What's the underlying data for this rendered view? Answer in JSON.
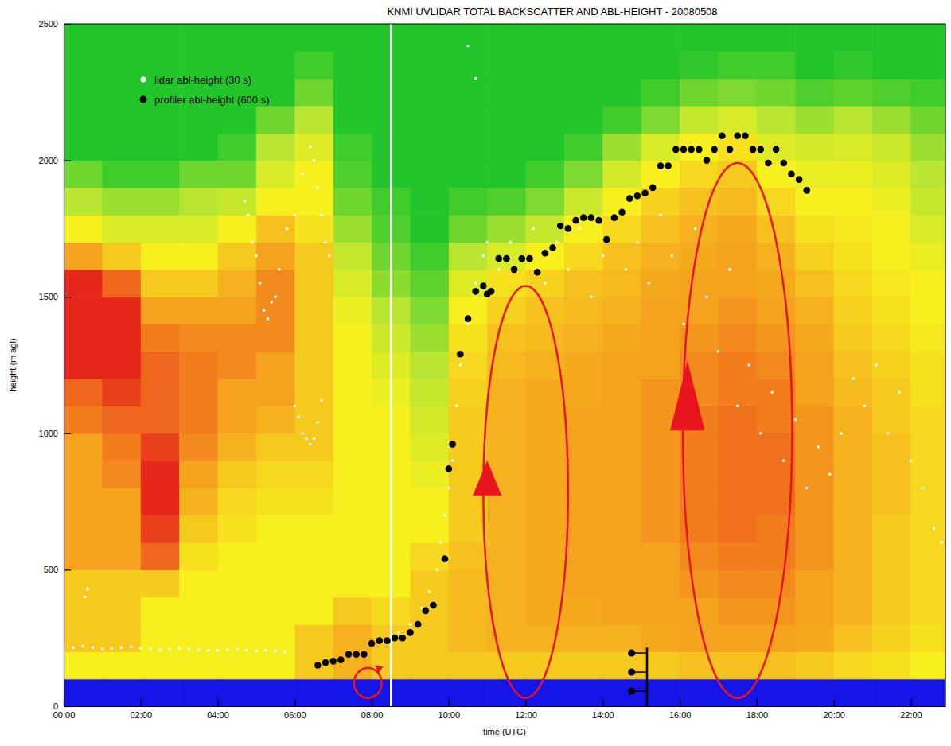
{
  "chart_data": {
    "type": "heatmap",
    "title": "KNMI UVLIDAR TOTAL BACKSCATTER AND ABL-HEIGHT - 20080508",
    "xlabel": "time (UTC)",
    "ylabel": "height (m agl)",
    "xlim": [
      0,
      22.9
    ],
    "ylim": [
      0,
      2500
    ],
    "xticks": [
      {
        "value": 0,
        "label": "00:00"
      },
      {
        "value": 2,
        "label": "02:00"
      },
      {
        "value": 4,
        "label": "04:00"
      },
      {
        "value": 6,
        "label": "06:00"
      },
      {
        "value": 8,
        "label": "08:00"
      },
      {
        "value": 10,
        "label": "10:00"
      },
      {
        "value": 12,
        "label": "12:00"
      },
      {
        "value": 14,
        "label": "14:00"
      },
      {
        "value": 16,
        "label": "16:00"
      },
      {
        "value": 18,
        "label": "18:00"
      },
      {
        "value": 20,
        "label": "20:00"
      },
      {
        "value": 22,
        "label": "22:00"
      }
    ],
    "yticks": [
      0,
      500,
      1000,
      1500,
      2000,
      2500
    ],
    "legend": "top-left",
    "x_edges": [
      0,
      1,
      2,
      3,
      4,
      5,
      6,
      7,
      8,
      9,
      10,
      11,
      12,
      13,
      14,
      15,
      16,
      17,
      18,
      19,
      20,
      21,
      22,
      23
    ],
    "y_edges": [
      0,
      100,
      200,
      300,
      400,
      500,
      600,
      700,
      800,
      900,
      1000,
      1100,
      1200,
      1300,
      1400,
      1500,
      1600,
      1700,
      1800,
      1900,
      2000,
      2100,
      2200,
      2300,
      2400,
      2500
    ],
    "zlim": [
      0,
      5
    ],
    "z": [
      [
        0,
        3,
        3.5,
        3.5,
        3.5,
        4,
        4,
        4,
        4,
        4,
        4.3,
        4.5,
        5,
        5,
        5,
        5,
        4,
        3,
        2,
        1.5,
        1,
        1,
        1,
        1,
        1
      ],
      [
        0,
        3,
        3.5,
        3.5,
        3.5,
        4,
        4,
        4,
        4.2,
        4.3,
        4.5,
        4.8,
        5,
        5,
        5,
        4.5,
        3.5,
        2.5,
        1.8,
        1.2,
        1,
        1,
        1,
        1,
        1
      ],
      [
        0,
        3,
        3,
        3,
        3.5,
        4.5,
        4.8,
        5,
        5,
        4.8,
        4.5,
        4.5,
        4.5,
        4.3,
        4,
        3.5,
        3,
        2.5,
        1.8,
        1.2,
        1,
        1,
        1,
        1,
        1
      ],
      [
        0,
        3,
        3,
        3,
        3,
        3.2,
        3.5,
        3.8,
        4,
        4.2,
        4.3,
        4.3,
        4.3,
        4.2,
        4,
        3.5,
        3,
        2.5,
        2,
        1.5,
        1,
        1,
        1,
        1,
        1
      ],
      [
        0,
        3,
        3,
        3,
        3,
        3,
        3.2,
        3.3,
        3.5,
        3.8,
        4,
        4,
        4.2,
        4.2,
        4,
        3.8,
        3.5,
        3,
        2.2,
        1.5,
        1.2,
        1,
        1,
        1,
        1
      ],
      [
        0,
        3,
        3,
        3,
        3,
        3,
        3,
        3.2,
        3.3,
        3.5,
        3.8,
        4,
        4,
        4.2,
        4.2,
        4.2,
        4,
        3.6,
        3,
        2.5,
        2,
        1.5,
        1,
        1,
        1
      ],
      [
        0,
        3.5,
        3.5,
        3,
        3,
        3,
        3,
        3.2,
        3.3,
        3.5,
        3.5,
        3.5,
        3.5,
        3.5,
        3.5,
        3.5,
        3.5,
        3.2,
        3,
        3,
        2.6,
        2,
        1.5,
        1.2,
        1
      ],
      [
        0,
        3.8,
        3.8,
        3.5,
        3,
        3,
        3,
        3,
        3,
        3,
        3,
        3,
        3,
        3,
        2.8,
        2.5,
        2.2,
        1.8,
        1.5,
        1.3,
        1.2,
        1,
        1,
        1,
        1
      ],
      [
        0,
        3.5,
        3.5,
        3.3,
        3,
        3,
        3,
        3,
        3,
        3,
        3,
        2.8,
        2.6,
        2.3,
        2,
        1.7,
        1.5,
        1.3,
        1.2,
        1,
        1,
        1,
        1,
        1,
        1
      ],
      [
        0,
        3.5,
        3.5,
        3.5,
        3.5,
        3.3,
        3,
        3,
        2.8,
        2.6,
        2.4,
        2.2,
        2,
        1.8,
        1.6,
        1.4,
        1.2,
        1,
        1,
        1,
        1,
        1,
        1,
        1,
        1
      ],
      [
        0,
        3.5,
        3.7,
        3.7,
        3.7,
        3.6,
        3.5,
        3.5,
        3.5,
        3.5,
        3.5,
        3.4,
        3.3,
        3.2,
        3,
        2.6,
        2,
        1.5,
        1.2,
        1,
        1,
        1,
        1,
        1,
        1
      ],
      [
        0,
        3.5,
        3.8,
        3.8,
        3.8,
        3.8,
        3.8,
        3.8,
        3.8,
        3.8,
        3.8,
        3.8,
        3.7,
        3.6,
        3.4,
        3.2,
        2.5,
        1.8,
        1.3,
        1,
        1,
        1,
        1,
        1,
        1
      ],
      [
        0,
        3.5,
        3.8,
        3.9,
        3.9,
        3.9,
        3.9,
        3.9,
        3.9,
        3.9,
        3.9,
        3.9,
        3.8,
        3.7,
        3.6,
        3.4,
        3,
        2.2,
        1.6,
        1.2,
        1,
        1,
        1,
        1,
        1
      ],
      [
        0,
        3.5,
        3.8,
        3.9,
        4,
        4,
        4,
        4,
        4,
        4,
        4,
        3.9,
        3.9,
        3.8,
        3.7,
        3.6,
        3.3,
        3,
        2.3,
        1.6,
        1.2,
        1,
        1,
        1,
        1
      ],
      [
        0,
        3.5,
        3.8,
        4,
        4,
        4,
        4,
        4,
        4,
        4,
        4,
        4,
        4,
        3.9,
        3.8,
        3.7,
        3.6,
        3.3,
        3,
        2.4,
        1.8,
        1.2,
        1,
        1,
        1
      ],
      [
        0,
        3.5,
        3.9,
        4,
        4,
        4,
        4.1,
        4.1,
        4.1,
        4.1,
        4.1,
        4.1,
        4,
        4,
        4,
        3.9,
        3.8,
        3.6,
        3.4,
        3,
        2.5,
        1.6,
        1.2,
        1,
        1
      ],
      [
        0,
        3.6,
        4,
        4,
        4.1,
        4.2,
        4.3,
        4.3,
        4.3,
        4.3,
        4.3,
        4.2,
        4.2,
        4.1,
        4,
        4,
        3.9,
        3.8,
        3.6,
        3.3,
        3,
        2.2,
        1.5,
        1.1,
        1
      ],
      [
        0,
        3.6,
        4,
        4.1,
        4.2,
        4.3,
        4.4,
        4.4,
        4.4,
        4.4,
        4.4,
        4.3,
        4.3,
        4.2,
        4.1,
        4,
        4,
        3.9,
        3.7,
        3.5,
        3.2,
        2.5,
        1.6,
        1.2,
        1
      ],
      [
        0,
        3.6,
        4,
        4.1,
        4.2,
        4.3,
        4.3,
        4.4,
        4.4,
        4.4,
        4.3,
        4.3,
        4.2,
        4.1,
        4,
        3.9,
        3.8,
        3.6,
        3.3,
        3,
        2.6,
        2,
        1.5,
        1.2,
        1
      ],
      [
        0,
        3.5,
        3.9,
        4,
        4,
        4.1,
        4.1,
        4.1,
        4.1,
        4.1,
        4.1,
        4,
        4,
        3.9,
        3.8,
        3.6,
        3.4,
        3.2,
        3,
        2.8,
        2.4,
        1.8,
        1.3,
        1,
        1
      ],
      [
        0,
        3.3,
        3.6,
        3.8,
        3.8,
        3.8,
        3.8,
        3.8,
        3.8,
        3.8,
        3.8,
        3.7,
        3.6,
        3.5,
        3.4,
        3.3,
        3.2,
        3.1,
        3,
        2.8,
        2.5,
        2,
        1.4,
        1.1,
        1
      ],
      [
        0,
        3.2,
        3.4,
        3.5,
        3.5,
        3.5,
        3.5,
        3.6,
        3.6,
        3.6,
        3.5,
        3.5,
        3.4,
        3.3,
        3.2,
        3.1,
        3,
        3,
        2.8,
        2.6,
        2.3,
        1.8,
        1.3,
        1,
        1
      ],
      [
        0,
        3,
        3.2,
        3.3,
        3.3,
        3.3,
        3.3,
        3.3,
        3.3,
        3.3,
        3.3,
        3.2,
        3.2,
        3.1,
        3,
        3,
        2.8,
        2.5,
        2.2,
        2,
        1.8,
        1.5,
        1.2,
        1,
        1
      ]
    ],
    "series": [
      {
        "name": "lidar abl-height (30 s)",
        "color": "#ffffff",
        "type": "scatter",
        "marker": "circle",
        "x": [
          0,
          0.25,
          0.5,
          0.75,
          1,
          1.25,
          1.5,
          1.75,
          2,
          2.25,
          2.5,
          2.75,
          3,
          3.25,
          3.5,
          3.75,
          4,
          4.25,
          4.5,
          4.75,
          5,
          5.25,
          5.5,
          5.75,
          0.55,
          0.62,
          4.7,
          4.8,
          4.9,
          5.0,
          5.1,
          5.2,
          5.3,
          5.4,
          5.5,
          5.6,
          5.8,
          6.0,
          6.2,
          6.4,
          6.5,
          6.6,
          6.7,
          6.8,
          6.9,
          6.0,
          6.1,
          6.2,
          6.3,
          6.4,
          6.5,
          6.6,
          6.7,
          8.7,
          9.0,
          9.3,
          9.5,
          9.7,
          9.8,
          9.9,
          10.0,
          10.1,
          10.2,
          10.3,
          10.5,
          10.7,
          10.9,
          11.0,
          10.5,
          10.7,
          11.3,
          11.6,
          11.9,
          12.2,
          12.5,
          12.8,
          13.1,
          13.4,
          13.7,
          14.0,
          14.3,
          14.6,
          14.9,
          15.2,
          15.5,
          15.8,
          16.1,
          16.4,
          16.7,
          17.0,
          17.3,
          17.5,
          17.8,
          18.1,
          18.4,
          18.7,
          19.0,
          19.3,
          19.6,
          19.9,
          20.2,
          20.5,
          20.8,
          21.1,
          21.4,
          21.7,
          22.0,
          22.3,
          22.6,
          22.8
        ],
        "values": [
          210,
          215,
          220,
          215,
          210,
          212,
          215,
          218,
          212,
          210,
          208,
          210,
          212,
          210,
          208,
          205,
          205,
          208,
          210,
          205,
          203,
          205,
          203,
          200,
          400,
          430,
          1850,
          1800,
          1700,
          1650,
          1550,
          1450,
          1420,
          1480,
          1500,
          1600,
          1750,
          1800,
          1950,
          2050,
          2000,
          1900,
          1800,
          1700,
          1650,
          1100,
          1060,
          1000,
          980,
          960,
          980,
          1040,
          1120,
          270,
          300,
          360,
          420,
          500,
          600,
          700,
          800,
          900,
          1100,
          1250,
          1400,
          1550,
          1650,
          1700,
          2420,
          2300,
          1600,
          1700,
          1650,
          1750,
          1550,
          1700,
          1600,
          1750,
          1500,
          1650,
          1800,
          1600,
          1700,
          1550,
          1800,
          1650,
          1400,
          1750,
          1500,
          1300,
          1600,
          1100,
          1250,
          1000,
          1150,
          900,
          1050,
          800,
          950,
          850,
          1000,
          1200,
          1100,
          1250,
          1000,
          1150,
          900,
          800,
          650,
          600
        ]
      },
      {
        "name": "profiler abl-height (600 s)",
        "color": "#000000",
        "type": "scatter",
        "marker": "circle",
        "x": [
          6.6,
          6.8,
          7.0,
          7.2,
          7.4,
          7.6,
          7.8,
          8.0,
          8.2,
          8.4,
          8.6,
          8.8,
          9.0,
          9.2,
          9.4,
          9.6,
          9.9,
          10.0,
          10.1,
          10.3,
          10.5,
          10.7,
          10.9,
          11.0,
          11.1,
          11.3,
          11.5,
          11.7,
          11.9,
          12.1,
          12.3,
          12.5,
          12.7,
          12.9,
          13.1,
          13.3,
          13.5,
          13.7,
          13.9,
          14.1,
          14.3,
          14.5,
          14.7,
          14.9,
          15.1,
          15.3,
          15.5,
          15.7,
          15.9,
          16.1,
          16.3,
          16.5,
          16.7,
          16.9,
          17.1,
          17.3,
          17.5,
          17.7,
          17.9,
          18.1,
          18.3,
          18.5,
          18.7,
          18.9,
          19.1,
          19.3
        ],
        "values": [
          150,
          160,
          165,
          170,
          190,
          190,
          190,
          230,
          240,
          240,
          250,
          250,
          270,
          300,
          350,
          370,
          540,
          870,
          960,
          1290,
          1420,
          1520,
          1540,
          1510,
          1520,
          1640,
          1640,
          1600,
          1640,
          1640,
          1590,
          1660,
          1680,
          1760,
          1750,
          1780,
          1790,
          1790,
          1780,
          1710,
          1790,
          1810,
          1860,
          1870,
          1880,
          1900,
          1980,
          1980,
          2040,
          2040,
          2040,
          2040,
          2000,
          2040,
          2090,
          2040,
          2090,
          2090,
          2040,
          2040,
          1990,
          2040,
          1990,
          1950,
          1930,
          1890
        ]
      }
    ]
  }
}
